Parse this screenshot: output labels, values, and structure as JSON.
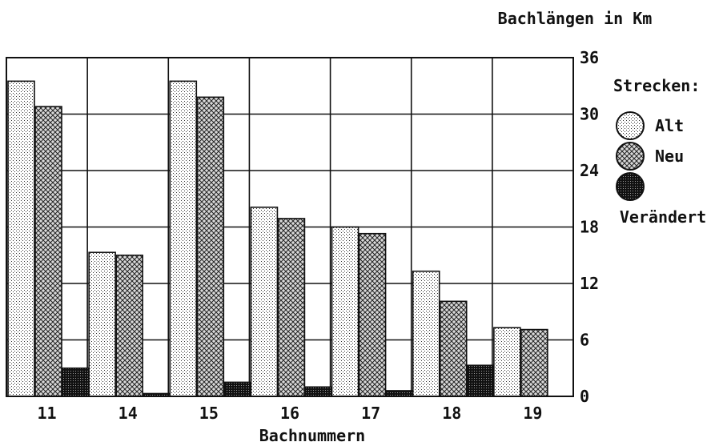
{
  "chart_data": {
    "type": "bar",
    "title": "Bachlängen in Km",
    "xlabel": "Bachnummern",
    "ylabel": "",
    "categories": [
      "11",
      "14",
      "15",
      "16",
      "17",
      "18",
      "19"
    ],
    "series": [
      {
        "name": "Alt",
        "pattern": "dots-light",
        "values": [
          33.5,
          15.3,
          33.5,
          20.1,
          18.0,
          13.3,
          7.3
        ]
      },
      {
        "name": "Neu",
        "pattern": "crosshatch",
        "values": [
          30.8,
          15.0,
          31.8,
          18.9,
          17.3,
          10.1,
          7.1
        ]
      },
      {
        "name": "Verändert",
        "pattern": "dense-grid",
        "values": [
          3.0,
          0.3,
          1.5,
          1.0,
          0.6,
          3.3,
          0.0
        ]
      }
    ],
    "ylim": [
      0,
      36
    ],
    "yticks": [
      0,
      6,
      12,
      18,
      24,
      30,
      36
    ],
    "grid": true,
    "legend_title": "Strecken:",
    "legend_position": "right",
    "colors": {
      "ink": "#111111",
      "background": "#ffffff",
      "alt_fill": "#eeeeee",
      "neu_fill": "#bdbdbd",
      "veraendert_fill": "#555555"
    }
  }
}
